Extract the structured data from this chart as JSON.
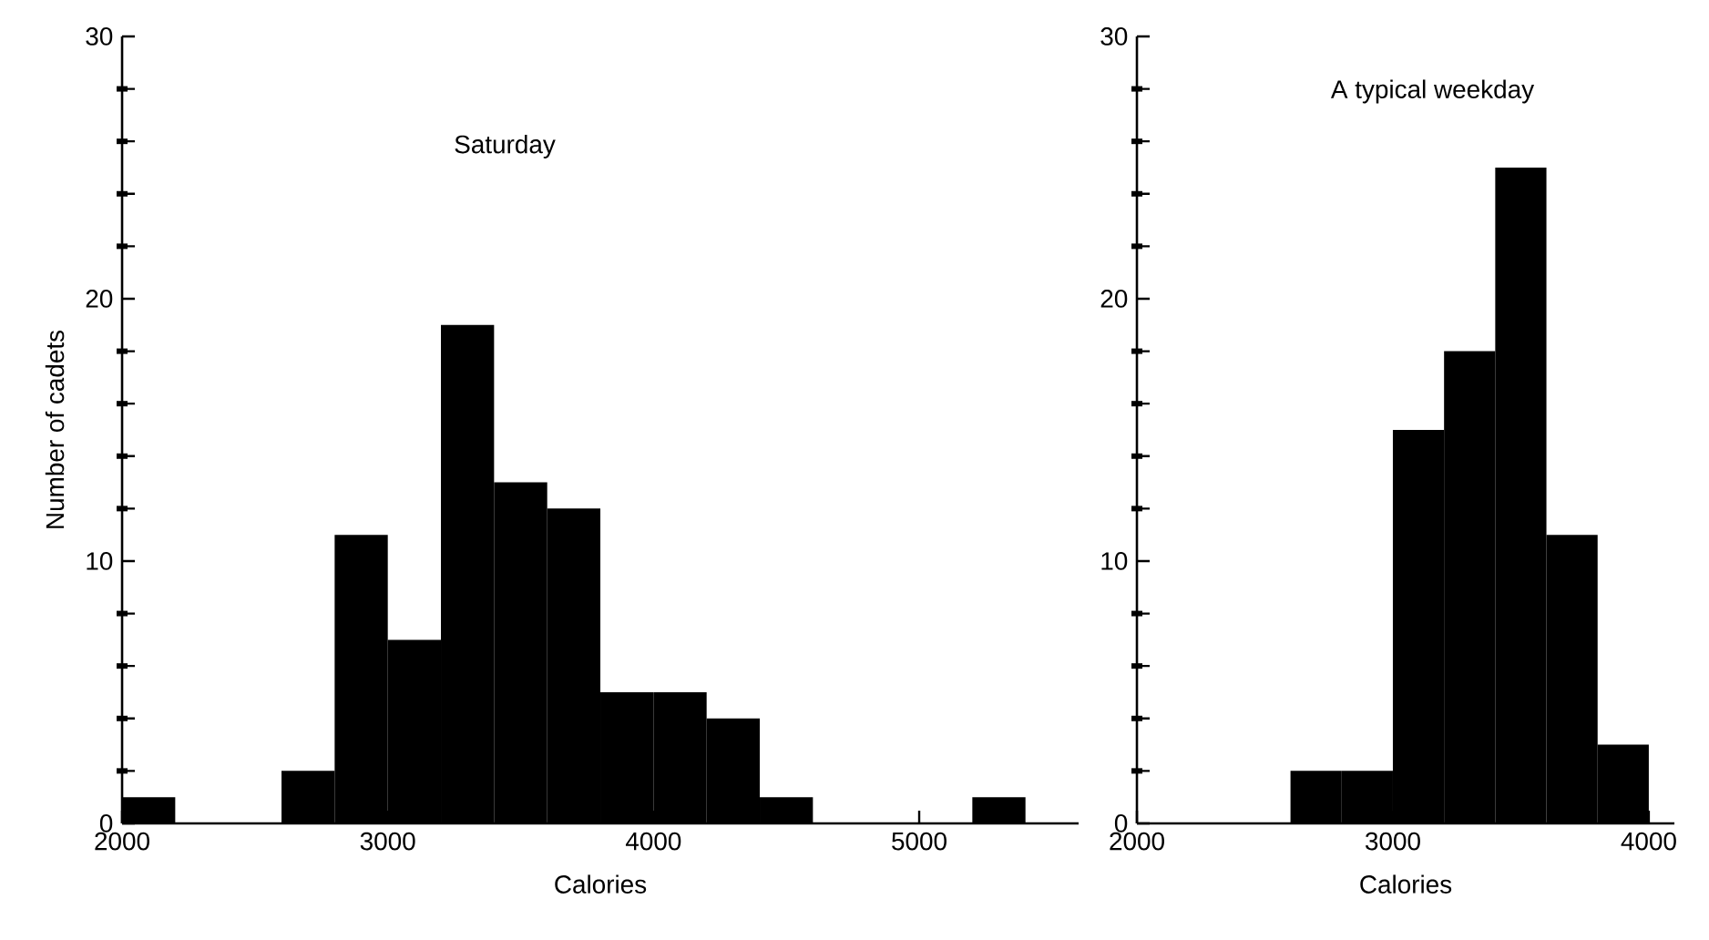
{
  "chart_data": [
    {
      "type": "histogram",
      "title": "Saturday",
      "xlabel": "Calories",
      "ylabel": "Number of cadets",
      "color": "#000000",
      "bins": [
        2000,
        2200,
        2400,
        2600,
        2800,
        3000,
        3200,
        3400,
        3600,
        3800,
        4000,
        4200,
        4400,
        4600,
        4800,
        5000,
        5200,
        5400
      ],
      "values": [
        1,
        0,
        0,
        2,
        11,
        7,
        19,
        13,
        12,
        5,
        5,
        4,
        1,
        0,
        0,
        0,
        1
      ],
      "xlim": [
        2000,
        5600
      ],
      "ylim": [
        0,
        30
      ],
      "xticks": [
        2000,
        3000,
        4000,
        5000
      ],
      "yticks": [
        0,
        {
          "value": 2,
          "label": null
        },
        {
          "value": 4,
          "label": null
        },
        {
          "value": 6,
          "label": null
        },
        {
          "value": 8,
          "label": null
        },
        10,
        {
          "value": 12,
          "label": null
        },
        {
          "value": 14,
          "label": null
        },
        {
          "value": 16,
          "label": null
        },
        {
          "value": 18,
          "label": null
        },
        20,
        {
          "value": 22,
          "label": null
        },
        {
          "value": 24,
          "label": null
        },
        {
          "value": 26,
          "label": null
        },
        {
          "value": 28,
          "label": null
        },
        30
      ]
    },
    {
      "type": "histogram",
      "title": "A typical weekday",
      "xlabel": "Calories",
      "color": "#000000",
      "bins": [
        2000,
        2200,
        2400,
        2600,
        2800,
        3000,
        3200,
        3400,
        3600,
        3800,
        4000
      ],
      "values": [
        0,
        0,
        0,
        2,
        2,
        15,
        18,
        25,
        11,
        3
      ],
      "xlim": [
        2000,
        4100
      ],
      "ylim": [
        0,
        30
      ],
      "xticks": [
        2000,
        3000,
        4000
      ],
      "yticks": [
        0,
        {
          "value": 2,
          "label": null
        },
        {
          "value": 4,
          "label": null
        },
        {
          "value": 6,
          "label": null
        },
        {
          "value": 8,
          "label": null
        },
        10,
        {
          "value": 12,
          "label": null
        },
        {
          "value": 14,
          "label": null
        },
        {
          "value": 16,
          "label": null
        },
        {
          "value": 18,
          "label": null
        },
        20,
        {
          "value": 22,
          "label": null
        },
        {
          "value": 24,
          "label": null
        },
        {
          "value": 26,
          "label": null
        },
        {
          "value": 28,
          "label": null
        },
        30
      ]
    }
  ]
}
